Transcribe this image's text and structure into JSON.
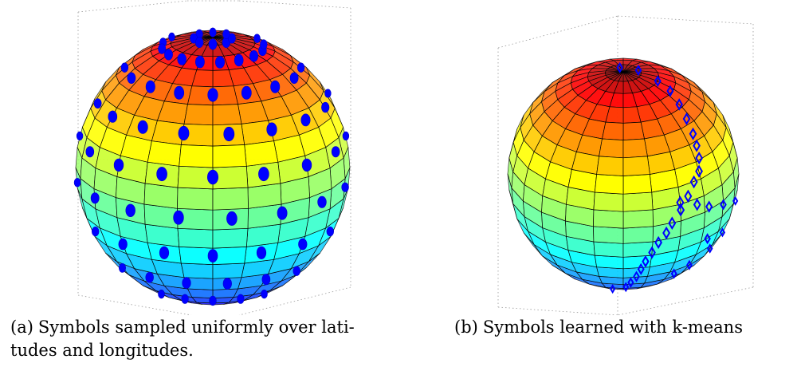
{
  "panels": [
    {
      "id": "a",
      "tag": "(a)",
      "caption_line1": "Symbols sampled uniformly over lati-",
      "caption_line2": "tudes and longitudes.",
      "marker": "filled-circle",
      "marker_color": "#0000ff"
    },
    {
      "id": "b",
      "tag": "(b)",
      "caption": "Symbols learned with k-means",
      "marker": "diamond",
      "marker_color": "#0000ff"
    }
  ],
  "colormap": "jet",
  "sphere": {
    "lat_bands": 20,
    "lon_meridians": 24
  }
}
